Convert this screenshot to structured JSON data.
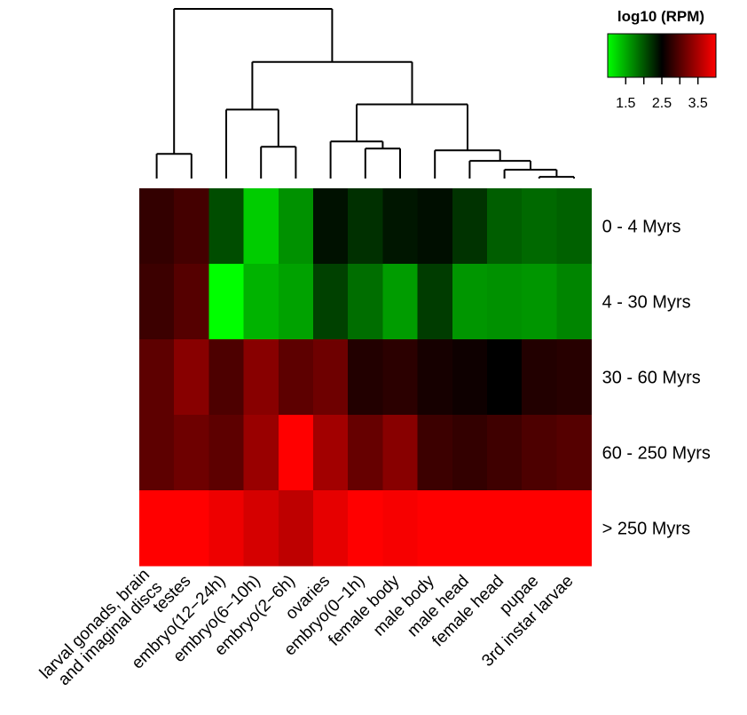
{
  "chart_data": {
    "type": "heatmap",
    "title": "",
    "legend": {
      "title": "log10 (RPM)",
      "placement": "top-right",
      "range": [
        1.0,
        4.0
      ],
      "ticks": [
        1.5,
        2.0,
        2.5,
        3.0,
        3.5
      ],
      "tick_labels": [
        "1.5",
        "2.5",
        "3.5"
      ],
      "colors": [
        "#00ff00",
        "#000000",
        "#ff0000"
      ]
    },
    "columns": [
      "larval gonads, brain\nand imaginal discs",
      "testes",
      "embryo(12−24h)",
      "embryo(6−10h)",
      "embryo(2−6h)",
      "ovaries",
      "embryo(0−1h)",
      "female body",
      "male body",
      "male head",
      "female head",
      "pupae",
      "3rd instar larvae"
    ],
    "rows": [
      "0 - 4 Myrs",
      "4 - 30 Myrs",
      "30 - 60 Myrs",
      "60 - 250 Myrs",
      "> 250 Myrs"
    ],
    "values": [
      [
        2.8,
        2.9,
        2.05,
        1.3,
        1.65,
        2.4,
        2.22,
        2.37,
        2.42,
        2.2,
        1.95,
        1.88,
        1.93
      ],
      [
        2.85,
        3.0,
        1.0,
        1.45,
        1.55,
        2.12,
        1.85,
        1.58,
        2.15,
        1.62,
        1.65,
        1.62,
        1.72
      ],
      [
        3.05,
        3.3,
        2.95,
        3.3,
        3.05,
        3.15,
        2.7,
        2.75,
        2.63,
        2.58,
        2.5,
        2.7,
        2.73
      ],
      [
        3.05,
        3.15,
        3.05,
        3.4,
        4.0,
        3.45,
        3.1,
        3.3,
        2.85,
        2.8,
        2.87,
        2.95,
        3.0
      ],
      [
        4.0,
        4.0,
        3.9,
        3.75,
        3.62,
        3.85,
        4.0,
        3.95,
        4.0,
        4.0,
        4.0,
        4.0,
        4.0
      ]
    ],
    "dendrogram": {
      "leaf_order": [
        0,
        1,
        2,
        3,
        4,
        5,
        6,
        7,
        8,
        9,
        10,
        11,
        12
      ],
      "merges": [
        [
          -12,
          -13,
          0.1
        ],
        [
          -11,
          1,
          0.18
        ],
        [
          -10,
          2,
          0.28
        ],
        [
          -9,
          3,
          0.4
        ],
        [
          -7,
          -8,
          0.42
        ],
        [
          -6,
          5,
          0.5
        ],
        [
          -4,
          -5,
          0.44
        ],
        [
          -1,
          -2,
          0.36
        ],
        [
          -3,
          7,
          0.86
        ],
        [
          6,
          4,
          0.92
        ],
        [
          9,
          10,
          1.4
        ],
        [
          8,
          11,
          2.0
        ]
      ],
      "max_height": 2.0
    }
  }
}
